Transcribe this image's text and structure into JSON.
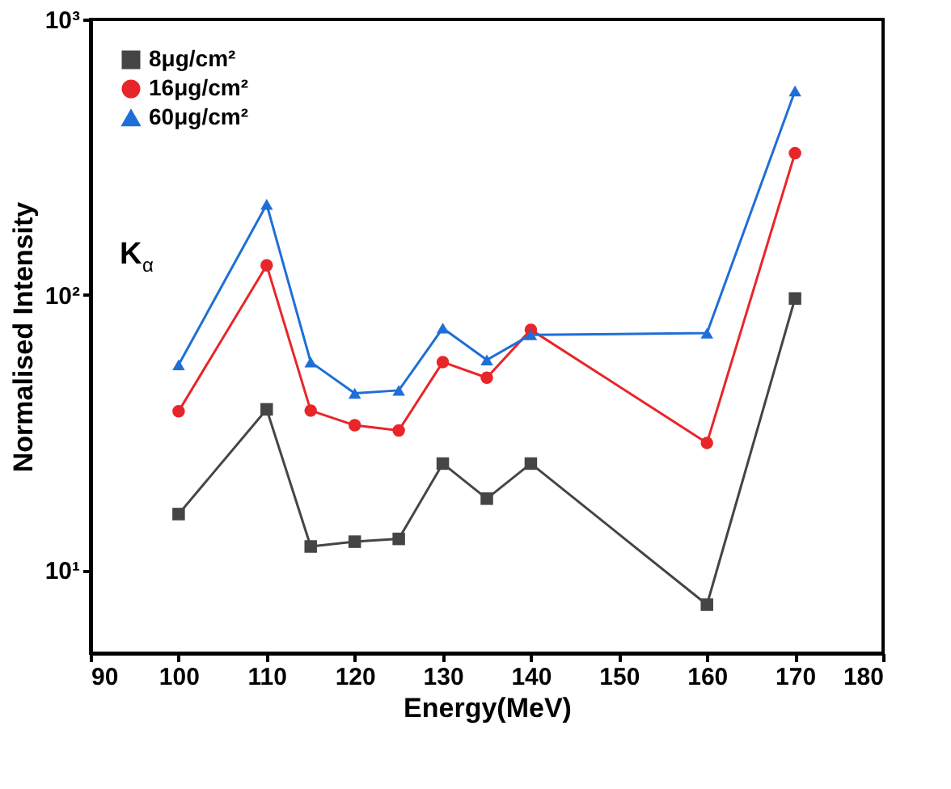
{
  "chart_data": {
    "type": "line",
    "xlabel": "Energy(MeV)",
    "ylabel": "Normalised Intensity",
    "x": [
      100,
      110,
      115,
      120,
      125,
      130,
      135,
      140,
      160,
      170
    ],
    "series": [
      {
        "name": "8μg/cm²",
        "color": "#454545",
        "marker": "square",
        "values": [
          16,
          38.4,
          12.2,
          12.7,
          13.0,
          24.4,
          18.2,
          24.4,
          7.5,
          97
        ]
      },
      {
        "name": "16μg/cm²",
        "color": "#e8262a",
        "marker": "circle",
        "values": [
          37.8,
          128,
          38,
          33.6,
          32.2,
          57,
          50,
          74.7,
          29,
          327
        ]
      },
      {
        "name": "60μg/cm²",
        "color": "#1f6fd6",
        "marker": "triangle",
        "values": [
          55.7,
          213,
          57,
          43.9,
          45,
          75.7,
          58,
          71.6,
          72.6,
          550
        ]
      }
    ],
    "xlim": [
      90,
      180
    ],
    "xticks": [
      90,
      100,
      110,
      120,
      130,
      140,
      150,
      160,
      170,
      180
    ],
    "ylim": [
      5,
      1000
    ],
    "yticks": [
      {
        "value": 10,
        "label": "10¹"
      },
      {
        "value": 100,
        "label": "10²"
      },
      {
        "value": 1000,
        "label": "10³"
      }
    ],
    "log": "y",
    "grid": false,
    "legend": "top left",
    "line_style": "solid",
    "annotations": [
      "K$_{α}$"
    ]
  }
}
